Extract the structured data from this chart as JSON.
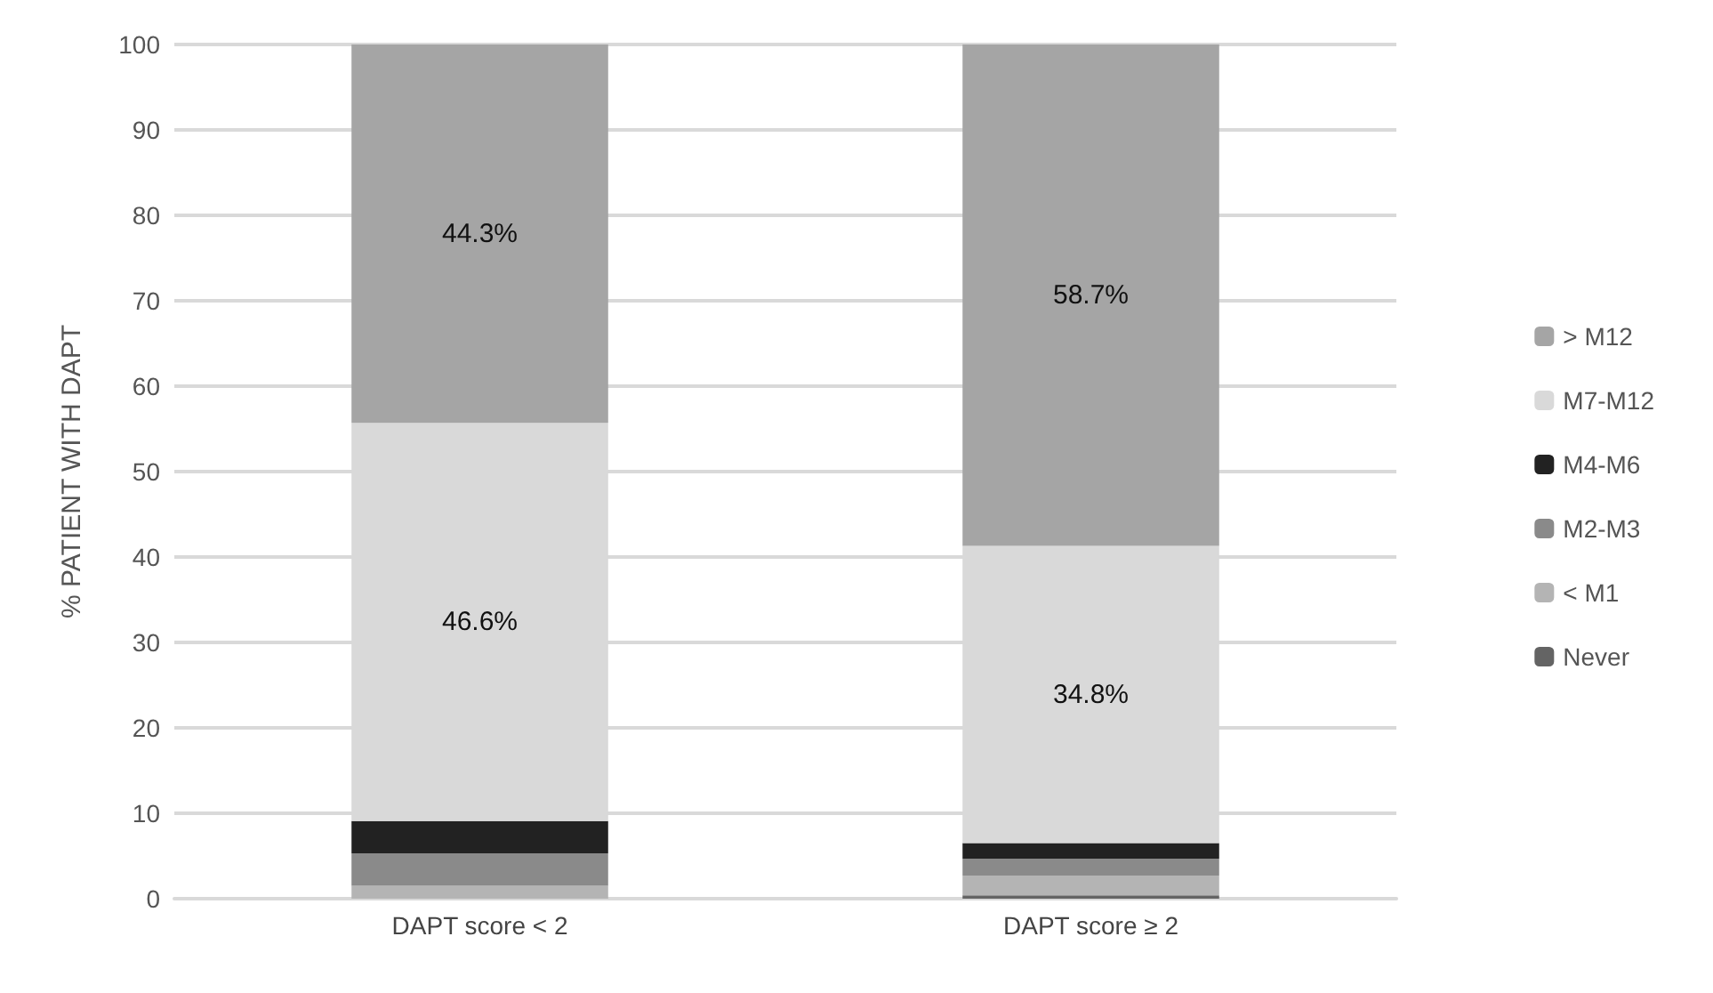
{
  "chart_data": {
    "type": "bar",
    "stacked": true,
    "ylabel": "% PATIENT WITH DAPT",
    "categories": [
      "DAPT score < 2",
      "DAPT score ≥ 2"
    ],
    "series": [
      {
        "name": "Never",
        "color": "#646464",
        "values": [
          0,
          0.4
        ]
      },
      {
        "name": "< M1",
        "color": "#b4b4b4",
        "values": [
          1.5,
          2.3
        ]
      },
      {
        "name": "M2-M3",
        "color": "#8a8a8a",
        "values": [
          3.8,
          2.0
        ]
      },
      {
        "name": "M4-M6",
        "color": "#222222",
        "values": [
          3.8,
          1.8
        ]
      },
      {
        "name": "M7-M12",
        "color": "#d9d9d9",
        "values": [
          46.6,
          34.8
        ],
        "value_labels": [
          "46.6%",
          "34.8%"
        ]
      },
      {
        "name": "> M12",
        "color": "#a5a5a5",
        "values": [
          44.3,
          58.7
        ],
        "value_labels": [
          "44.3%",
          "58.7%"
        ]
      }
    ],
    "ylim": [
      0,
      100
    ],
    "yticks": [
      0,
      10,
      20,
      30,
      40,
      50,
      60,
      70,
      80,
      90,
      100
    ],
    "grid": "y",
    "legend": "right"
  }
}
